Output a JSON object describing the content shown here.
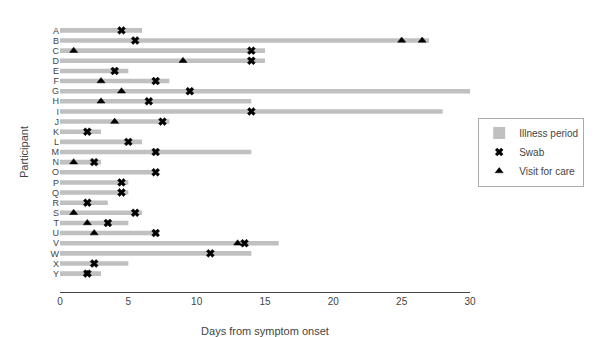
{
  "chart_data": {
    "type": "bar",
    "orientation": "horizontal",
    "xlabel": "Days from symptom onset",
    "ylabel": "Participant",
    "categories": [
      "A",
      "B",
      "C",
      "D",
      "E",
      "F",
      "G",
      "H",
      "I",
      "J",
      "K",
      "L",
      "M",
      "N",
      "O",
      "P",
      "Q",
      "R",
      "S",
      "T",
      "U",
      "V",
      "W",
      "X",
      "Y"
    ],
    "series": [
      {
        "name": "Illness period",
        "type": "bar",
        "color": "#c0c0c0",
        "values": [
          6,
          27,
          15,
          15,
          5,
          8,
          30,
          14,
          28,
          8,
          3,
          6,
          14,
          3,
          7,
          5,
          5,
          3.5,
          6,
          5,
          7,
          16,
          14,
          5,
          3
        ]
      },
      {
        "name": "Swab",
        "type": "scatter",
        "marker": "x",
        "color": "#000000",
        "values": [
          4.5,
          5.5,
          14,
          14,
          4,
          7,
          9.5,
          6.5,
          14,
          7.5,
          2,
          5,
          7,
          2.5,
          7,
          4.5,
          4.5,
          2,
          5.5,
          3.5,
          7,
          13.5,
          11,
          2.5,
          2
        ]
      },
      {
        "name": "Visit for care",
        "type": "scatter",
        "marker": "triangle-up",
        "color": "#000000",
        "values": [
          null,
          [
            25,
            26.5
          ],
          1,
          9,
          null,
          3,
          4.5,
          3,
          null,
          4,
          null,
          null,
          null,
          1,
          null,
          null,
          null,
          null,
          1,
          2,
          2.5,
          13,
          null,
          null,
          2
        ]
      }
    ],
    "xlim": [
      0,
      30
    ],
    "xticks": [
      0,
      5,
      10,
      15,
      20,
      25,
      30
    ],
    "grid": false,
    "legend": "right"
  }
}
